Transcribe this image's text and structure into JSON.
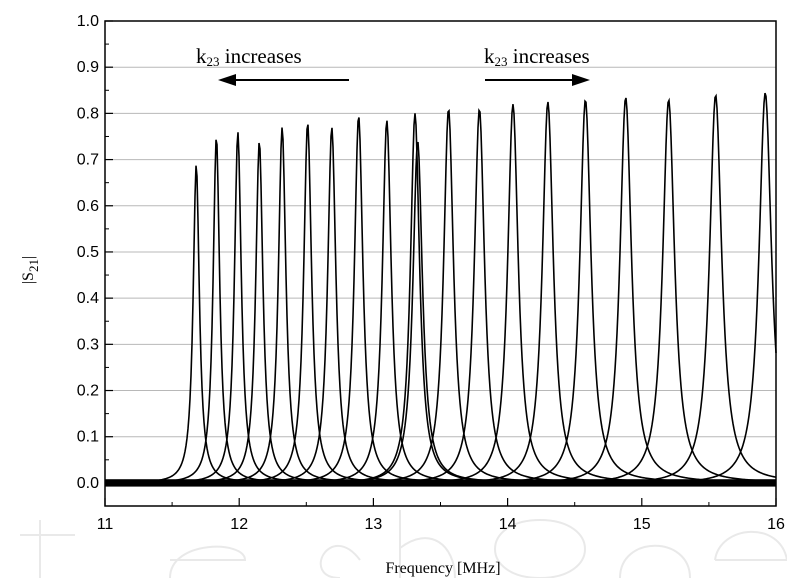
{
  "chart_data": {
    "type": "line",
    "title": "",
    "xlabel": "Frequency [MHz]",
    "ylabel_main": "|S",
    "ylabel_sub": "21",
    "ylabel_end": "|",
    "xlim": [
      11,
      16
    ],
    "ylim": [
      -0.05,
      1.0
    ],
    "x_ticks": [
      "11",
      "12",
      "13",
      "14",
      "15",
      "16"
    ],
    "y_ticks": [
      "0.0",
      "0.1",
      "0.2",
      "0.3",
      "0.4",
      "0.5",
      "0.6",
      "0.7",
      "0.8",
      "0.9",
      "1.0"
    ],
    "gridlines_y": [
      0.1,
      0.2,
      0.3,
      0.4,
      0.5,
      0.6,
      0.7,
      0.8,
      0.9,
      1.0
    ],
    "grid": "horizontal",
    "line_color": "#000000",
    "resonance_curves": [
      {
        "peak_frequency_mhz": 11.68,
        "peak_s21": 0.69
      },
      {
        "peak_frequency_mhz": 11.83,
        "peak_s21": 0.75
      },
      {
        "peak_frequency_mhz": 11.99,
        "peak_s21": 0.76
      },
      {
        "peak_frequency_mhz": 12.15,
        "peak_s21": 0.74
      },
      {
        "peak_frequency_mhz": 12.32,
        "peak_s21": 0.77
      },
      {
        "peak_frequency_mhz": 12.51,
        "peak_s21": 0.78
      },
      {
        "peak_frequency_mhz": 12.69,
        "peak_s21": 0.77
      },
      {
        "peak_frequency_mhz": 12.89,
        "peak_s21": 0.795
      },
      {
        "peak_frequency_mhz": 13.1,
        "peak_s21": 0.785
      },
      {
        "peak_frequency_mhz": 13.31,
        "peak_s21": 0.8
      },
      {
        "peak_frequency_mhz": 13.33,
        "peak_s21": 0.74
      },
      {
        "peak_frequency_mhz": 13.56,
        "peak_s21": 0.81
      },
      {
        "peak_frequency_mhz": 13.79,
        "peak_s21": 0.81
      },
      {
        "peak_frequency_mhz": 14.04,
        "peak_s21": 0.82
      },
      {
        "peak_frequency_mhz": 14.3,
        "peak_s21": 0.825
      },
      {
        "peak_frequency_mhz": 14.58,
        "peak_s21": 0.83
      },
      {
        "peak_frequency_mhz": 14.88,
        "peak_s21": 0.835
      },
      {
        "peak_frequency_mhz": 15.2,
        "peak_s21": 0.83
      },
      {
        "peak_frequency_mhz": 15.55,
        "peak_s21": 0.84
      },
      {
        "peak_frequency_mhz": 15.92,
        "peak_s21": 0.845
      }
    ],
    "annotations": [
      {
        "text_main": "k",
        "text_sub": "23",
        "text_tail": " increases",
        "arrow": "left"
      },
      {
        "text_main": "k",
        "text_sub": "23",
        "text_tail": " increases",
        "arrow": "right"
      }
    ]
  }
}
